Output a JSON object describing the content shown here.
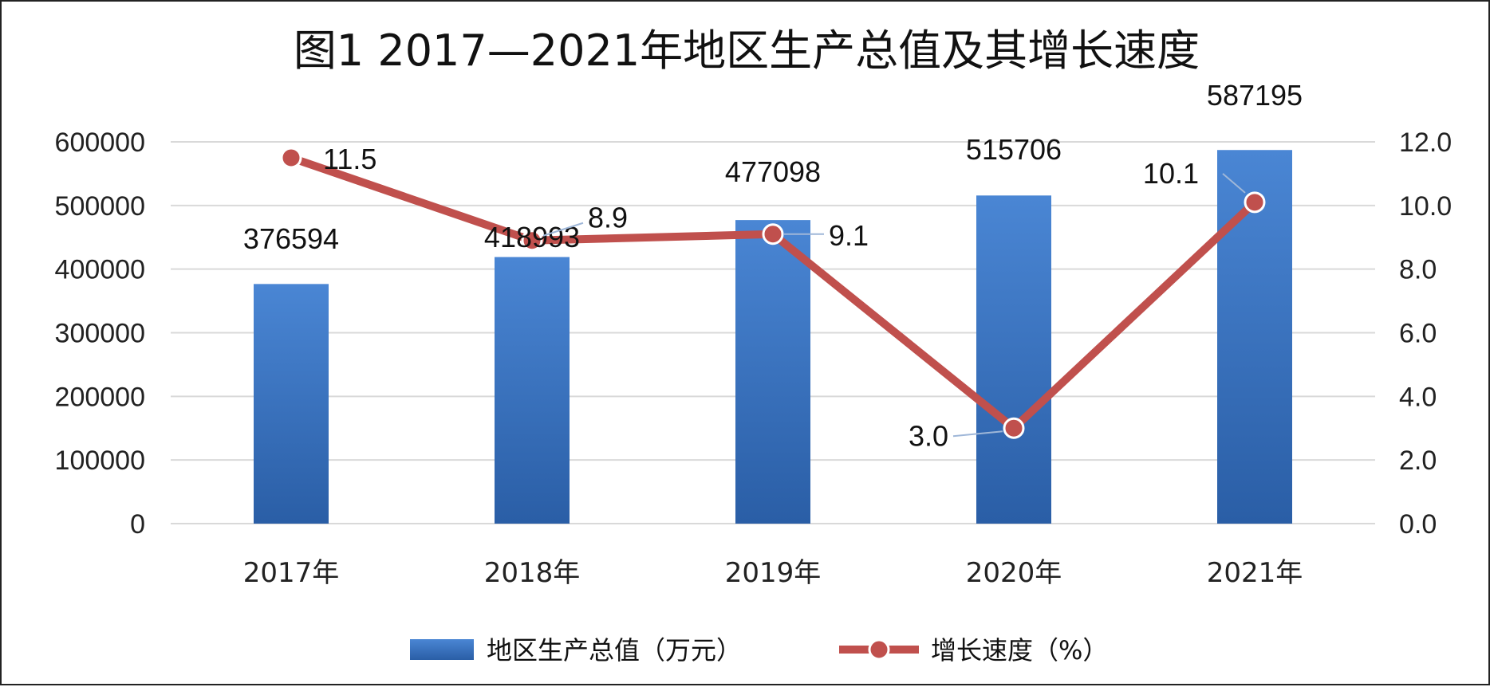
{
  "chart_data": {
    "type": "bar+line",
    "title": "图1  2017—2021年地区生产总值及其增长速度",
    "categories": [
      "2017年",
      "2018年",
      "2019年",
      "2020年",
      "2021年"
    ],
    "series": [
      {
        "name": "地区生产总值（万元）",
        "type": "bar",
        "axis": "left",
        "color": "#3a78c8",
        "values": [
          376594,
          418993,
          477098,
          515706,
          587195
        ],
        "labels": [
          "376594",
          "418993",
          "477098",
          "515706",
          "587195"
        ]
      },
      {
        "name": "增长速度（%）",
        "type": "line",
        "axis": "right",
        "color": "#c0504d",
        "values": [
          11.5,
          8.9,
          9.1,
          3.0,
          10.1
        ],
        "labels": [
          "11.5",
          "8.9",
          "9.1",
          "3.0",
          "10.1"
        ]
      }
    ],
    "y_left": {
      "min": 0,
      "max": 600000,
      "step": 100000,
      "ticks": [
        "0",
        "100000",
        "200000",
        "300000",
        "400000",
        "500000",
        "600000"
      ]
    },
    "y_right": {
      "min": 0,
      "max": 12,
      "step": 2,
      "ticks": [
        "0.0",
        "2.0",
        "4.0",
        "6.0",
        "8.0",
        "10.0",
        "12.0"
      ]
    },
    "grid": true,
    "legend_position": "bottom"
  }
}
